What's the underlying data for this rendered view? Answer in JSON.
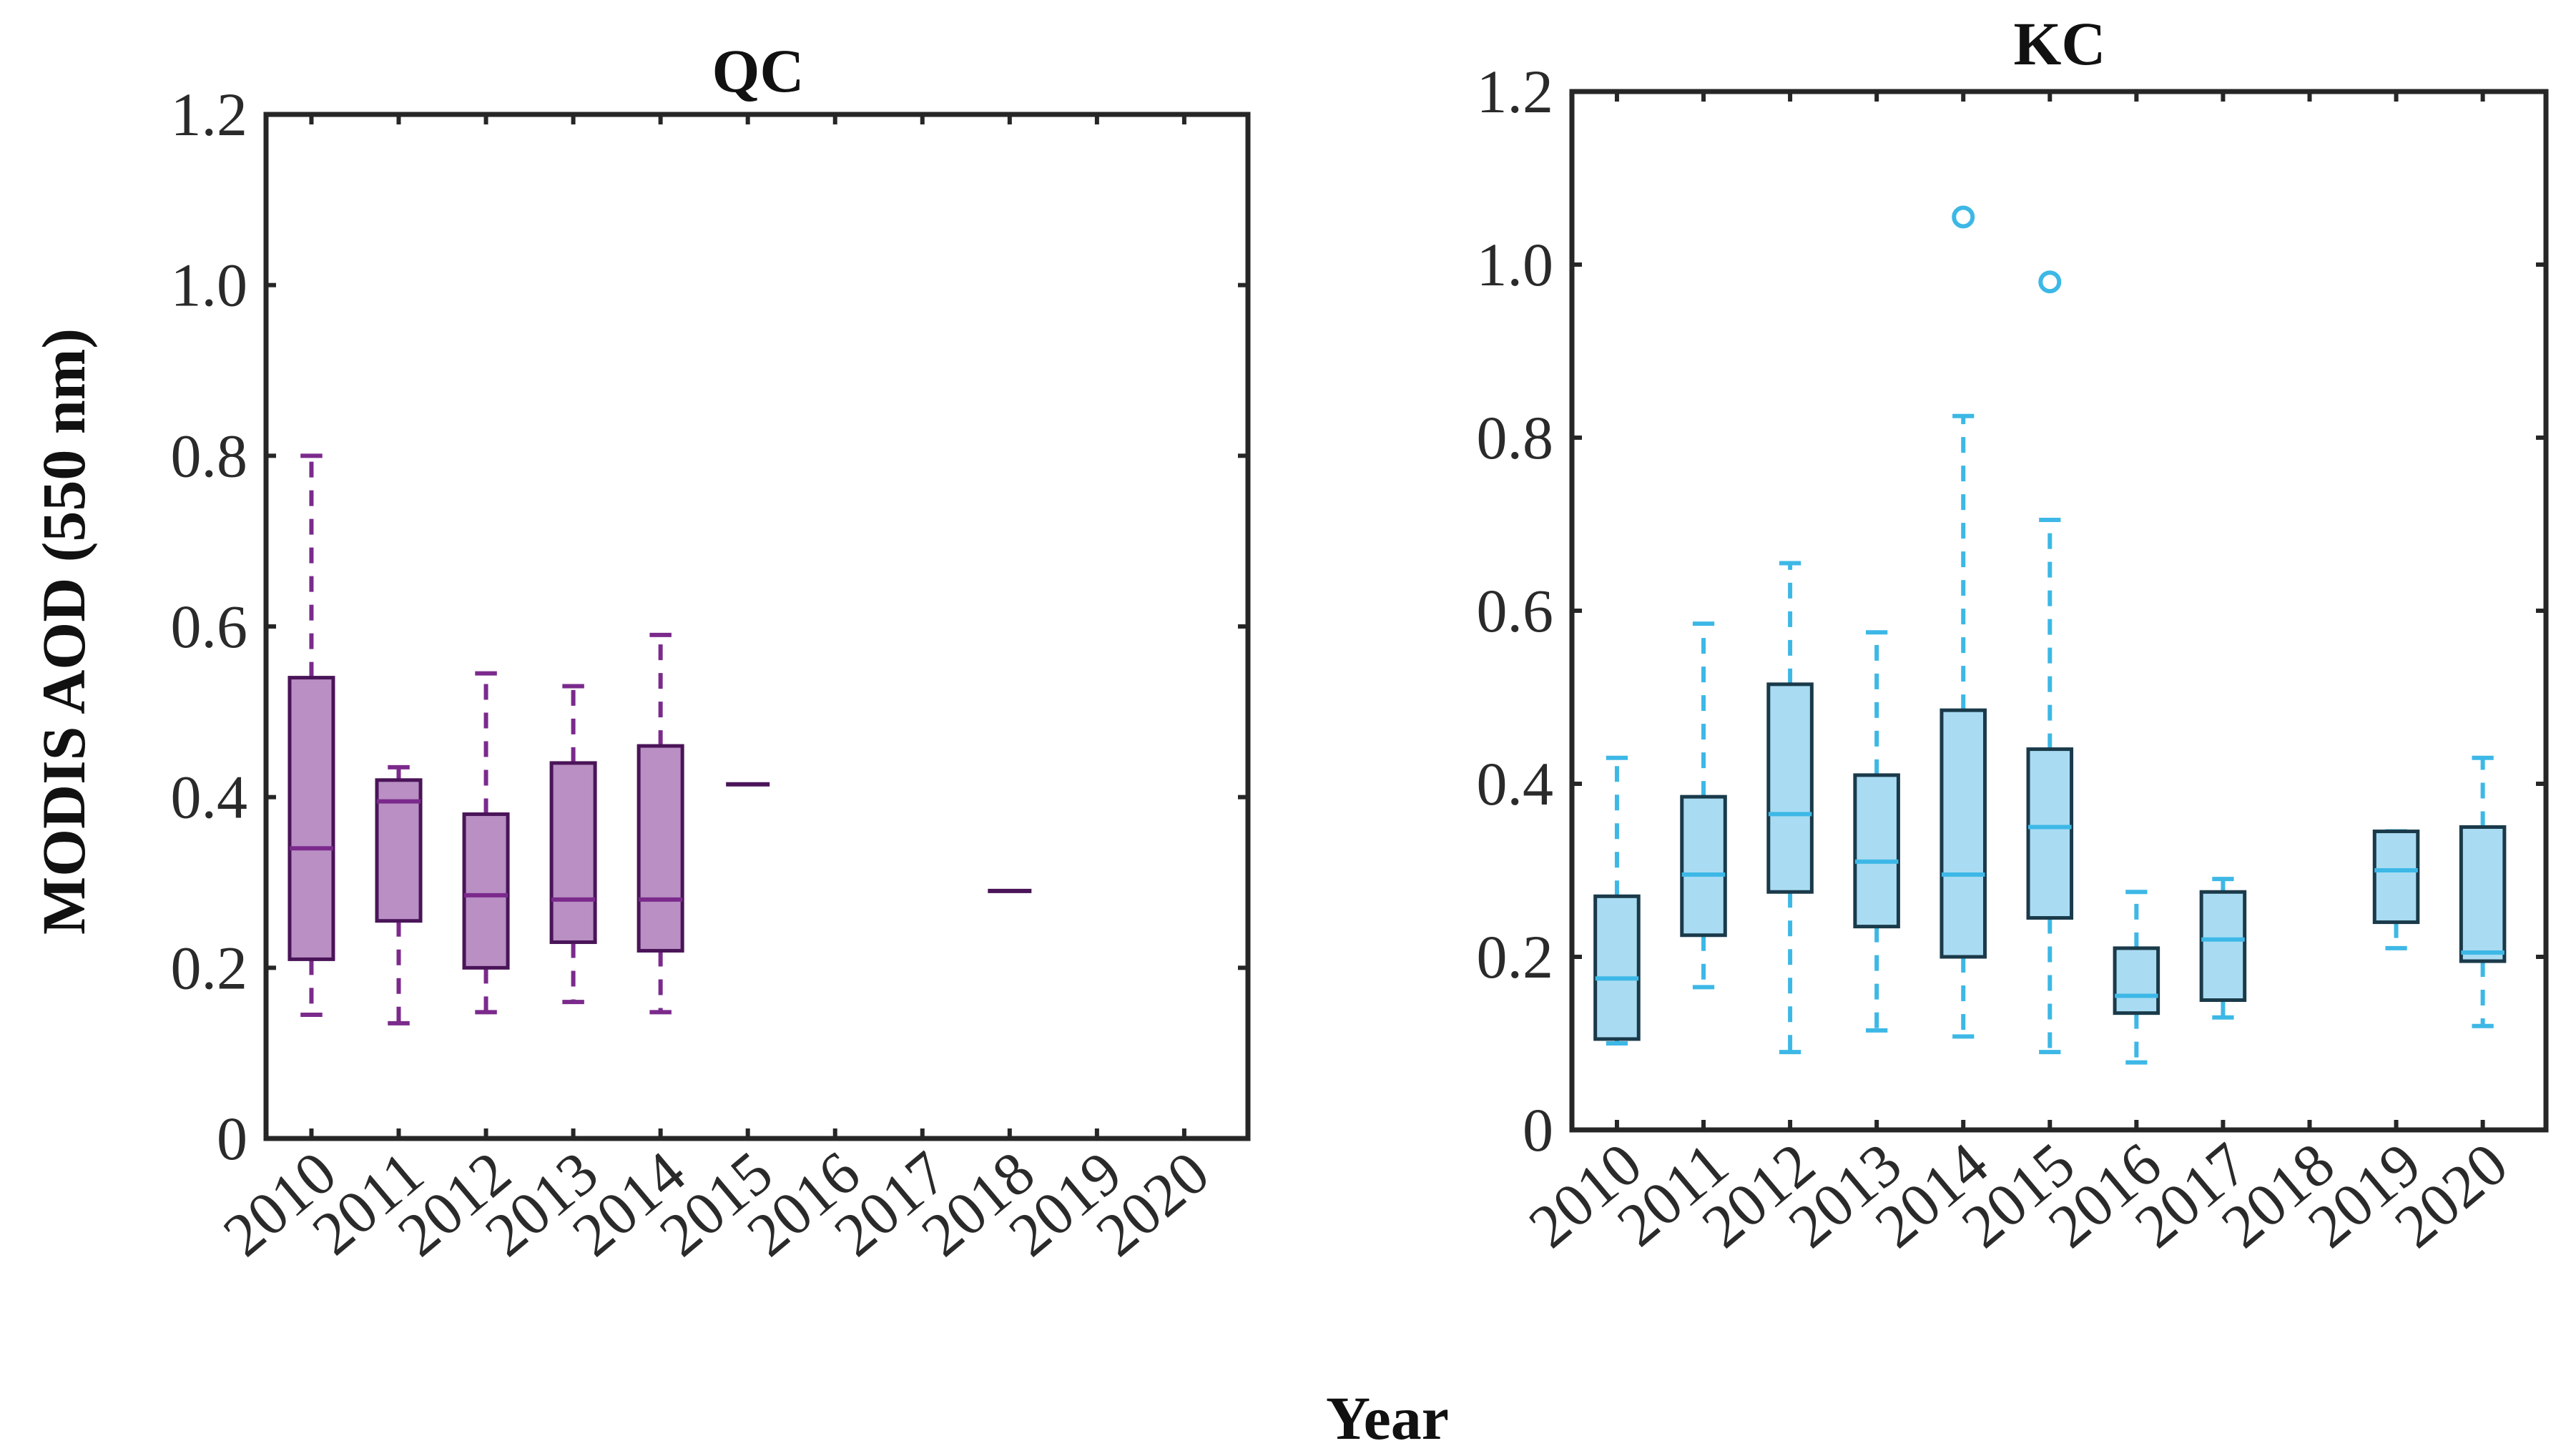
{
  "figure": {
    "ylabel": "MODIS AOD (550 nm)",
    "xlabel": "Year"
  },
  "chart_data": [
    {
      "type": "box",
      "title": "QC",
      "ylabel": "MODIS AOD (550 nm)",
      "ylim": [
        0,
        1.2
      ],
      "yticks": [
        "0",
        "0.2",
        "0.4",
        "0.6",
        "0.8",
        "1.0",
        "1.2"
      ],
      "categories": [
        "2010",
        "2011",
        "2012",
        "2013",
        "2014",
        "2015",
        "2016",
        "2017",
        "2018",
        "2019",
        "2020"
      ],
      "color": "#7b2a8c",
      "fill": "#b98fc4",
      "boxes": [
        {
          "year": "2010",
          "min": 0.145,
          "q1": 0.21,
          "median": 0.34,
          "q3": 0.54,
          "max": 0.8,
          "outliers": []
        },
        {
          "year": "2011",
          "min": 0.135,
          "q1": 0.255,
          "median": 0.395,
          "q3": 0.42,
          "max": 0.435,
          "outliers": []
        },
        {
          "year": "2012",
          "min": 0.148,
          "q1": 0.2,
          "median": 0.285,
          "q3": 0.38,
          "max": 0.545,
          "outliers": []
        },
        {
          "year": "2013",
          "min": 0.16,
          "q1": 0.23,
          "median": 0.28,
          "q3": 0.44,
          "max": 0.53,
          "outliers": []
        },
        {
          "year": "2014",
          "min": 0.148,
          "q1": 0.22,
          "median": 0.28,
          "q3": 0.46,
          "max": 0.59,
          "outliers": []
        },
        {
          "year": "2015",
          "single": 0.415
        },
        {
          "year": "2018",
          "single": 0.29
        }
      ]
    },
    {
      "type": "box",
      "title": "KC",
      "ylim": [
        0,
        1.2
      ],
      "yticks": [
        "0",
        "0.2",
        "0.4",
        "0.6",
        "0.8",
        "1.0",
        "1.2"
      ],
      "categories": [
        "2010",
        "2011",
        "2012",
        "2013",
        "2014",
        "2015",
        "2016",
        "2017",
        "2018",
        "2019",
        "2020"
      ],
      "color": "#3db8e6",
      "fill": "#a9dcf2",
      "edge": "#1a3a4a",
      "boxes": [
        {
          "year": "2010",
          "min": 0.1,
          "q1": 0.105,
          "median": 0.175,
          "q3": 0.27,
          "max": 0.43,
          "outliers": []
        },
        {
          "year": "2011",
          "min": 0.165,
          "q1": 0.225,
          "median": 0.295,
          "q3": 0.385,
          "max": 0.585,
          "outliers": []
        },
        {
          "year": "2012",
          "min": 0.09,
          "q1": 0.275,
          "median": 0.365,
          "q3": 0.515,
          "max": 0.655,
          "outliers": []
        },
        {
          "year": "2013",
          "min": 0.115,
          "q1": 0.235,
          "median": 0.31,
          "q3": 0.41,
          "max": 0.575,
          "outliers": []
        },
        {
          "year": "2014",
          "min": 0.108,
          "q1": 0.2,
          "median": 0.295,
          "q3": 0.485,
          "max": 0.825,
          "outliers": [
            1.055
          ]
        },
        {
          "year": "2015",
          "min": 0.09,
          "q1": 0.245,
          "median": 0.35,
          "q3": 0.44,
          "max": 0.705,
          "outliers": [
            0.98
          ]
        },
        {
          "year": "2016",
          "min": 0.078,
          "q1": 0.135,
          "median": 0.155,
          "q3": 0.21,
          "max": 0.275,
          "outliers": []
        },
        {
          "year": "2017",
          "min": 0.13,
          "q1": 0.15,
          "median": 0.22,
          "q3": 0.275,
          "max": 0.29,
          "outliers": []
        },
        {
          "year": "2019",
          "min": 0.21,
          "q1": 0.24,
          "median": 0.3,
          "q3": 0.345,
          "max": 0.345,
          "outliers": []
        },
        {
          "year": "2020",
          "min": 0.12,
          "q1": 0.195,
          "median": 0.205,
          "q3": 0.35,
          "max": 0.43,
          "outliers": []
        }
      ]
    }
  ]
}
